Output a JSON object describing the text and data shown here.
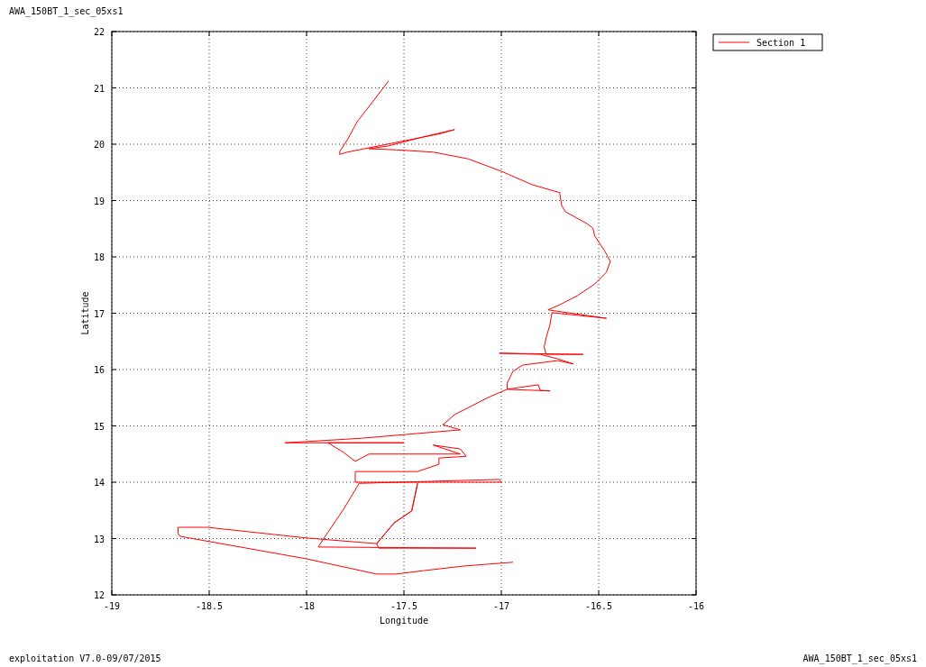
{
  "chart_data": {
    "type": "line",
    "title": "AWA_150BT_1_sec_05xs1",
    "xlabel": "Longitude",
    "ylabel": "Latitude",
    "annotations": [
      "exploitation V7.0-09/07/2015",
      "AWA_150BT_1_sec_05xs1"
    ],
    "xlim": [
      -19,
      -16
    ],
    "ylim": [
      12,
      22
    ],
    "xticks": [
      -19,
      -18.5,
      -18,
      -17.5,
      -17,
      -16.5,
      -16
    ],
    "yticks": [
      12,
      13,
      14,
      15,
      16,
      17,
      18,
      19,
      20,
      21,
      22
    ],
    "grid": true,
    "legend": "top right",
    "line_style": "solid",
    "series": [
      {
        "name": "Section 1",
        "color": "#ff0000",
        "x": [
          -17.58,
          -17.65,
          -17.74,
          -17.79,
          -17.83,
          -17.83,
          -17.79,
          -17.63,
          -17.44,
          -17.31,
          -17.24,
          -17.4,
          -17.58,
          -17.68,
          -17.54,
          -17.35,
          -17.17,
          -17.0,
          -16.84,
          -16.7,
          -16.69,
          -16.67,
          -16.56,
          -16.53,
          -16.52,
          -16.47,
          -16.44,
          -16.46,
          -16.52,
          -16.61,
          -16.7,
          -16.76,
          -16.46,
          -16.74,
          -16.75,
          -16.77,
          -16.78,
          -16.77,
          -16.58,
          -17.01,
          -16.8,
          -16.71,
          -16.63,
          -16.71,
          -16.89,
          -16.94,
          -16.97,
          -16.97,
          -16.81,
          -16.8,
          -16.75,
          -16.97,
          -17.07,
          -17.24,
          -17.3,
          -17.21,
          -17.72,
          -18.11,
          -17.5,
          -17.89,
          -17.81,
          -17.75,
          -17.68,
          -17.21,
          -17.35,
          -17.21,
          -17.18,
          -17.32,
          -17.32,
          -17.43,
          -17.75,
          -17.75,
          -17.0,
          -17.01,
          -17.73,
          -17.81,
          -17.91,
          -17.94,
          -17.13,
          -17.63,
          -17.64,
          -17.55,
          -17.46,
          -17.43,
          -17.46,
          -17.55,
          -17.64,
          -18.0,
          -18.51,
          -18.66,
          -18.66,
          -18.65,
          -18.0,
          -17.64,
          -17.54,
          -17.4,
          -17.2,
          -16.94
        ],
        "values": [
          21.12,
          20.8,
          20.4,
          20.08,
          19.87,
          19.82,
          19.86,
          19.97,
          20.1,
          20.19,
          20.26,
          20.13,
          19.97,
          19.92,
          19.9,
          19.86,
          19.74,
          19.52,
          19.28,
          19.14,
          18.91,
          18.8,
          18.59,
          18.51,
          18.37,
          18.11,
          17.92,
          17.73,
          17.52,
          17.31,
          17.15,
          17.06,
          16.91,
          17.01,
          16.8,
          16.56,
          16.4,
          16.27,
          16.27,
          16.29,
          16.27,
          16.19,
          16.1,
          16.16,
          16.08,
          15.97,
          15.76,
          15.65,
          15.73,
          15.63,
          15.62,
          15.65,
          15.5,
          15.2,
          15.02,
          14.93,
          14.78,
          14.7,
          14.7,
          14.7,
          14.53,
          14.37,
          14.5,
          14.5,
          14.66,
          14.59,
          14.46,
          14.43,
          14.32,
          14.19,
          14.19,
          14.0,
          14.0,
          14.05,
          13.98,
          13.52,
          13.01,
          12.85,
          12.83,
          12.83,
          12.91,
          13.28,
          13.49,
          13.98,
          13.49,
          13.28,
          12.91,
          13.01,
          13.2,
          13.2,
          13.09,
          13.04,
          12.64,
          12.37,
          12.37,
          12.43,
          12.51,
          12.58
        ]
      }
    ]
  }
}
